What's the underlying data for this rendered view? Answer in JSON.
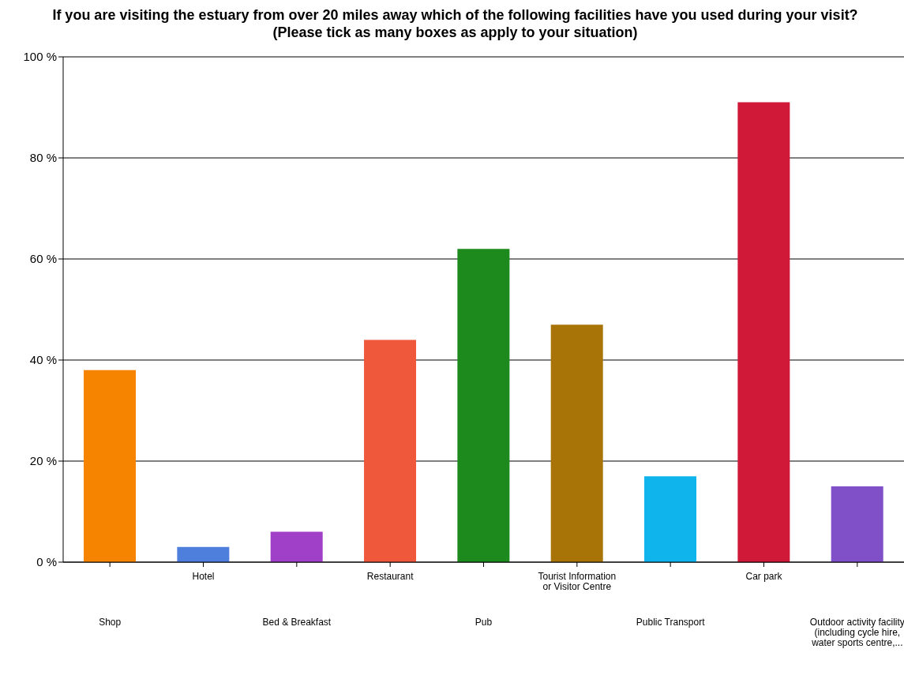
{
  "chart_data": {
    "type": "bar",
    "title": "If you are visiting the estuary from over 20 miles away which of the following facilities have you used during your visit? (Please tick as many boxes as apply to your situation)",
    "categories": [
      "Shop",
      "Hotel",
      "Bed & Breakfast",
      "Restaurant",
      "Pub",
      "Tourist Information or Visitor Centre",
      "Public Transport",
      "Car park",
      "Outdoor activity facility (including cycle hire, water sports centre,..."
    ],
    "values": [
      38,
      3,
      6,
      44,
      62,
      47,
      17,
      91,
      15
    ],
    "colors": [
      "#f68400",
      "#4f7fdc",
      "#a040c8",
      "#f0583c",
      "#1c8a1c",
      "#a87408",
      "#10b4ec",
      "#d01838",
      "#8050c8"
    ],
    "ylim": [
      0,
      100
    ],
    "yticks": [
      {
        "value": 0,
        "label": "0 %"
      },
      {
        "value": 20,
        "label": "20 %"
      },
      {
        "value": 40,
        "label": "40 %"
      },
      {
        "value": 60,
        "label": "60 %"
      },
      {
        "value": 80,
        "label": "80 %"
      },
      {
        "value": 100,
        "label": "100 %"
      }
    ],
    "grid": "y"
  }
}
